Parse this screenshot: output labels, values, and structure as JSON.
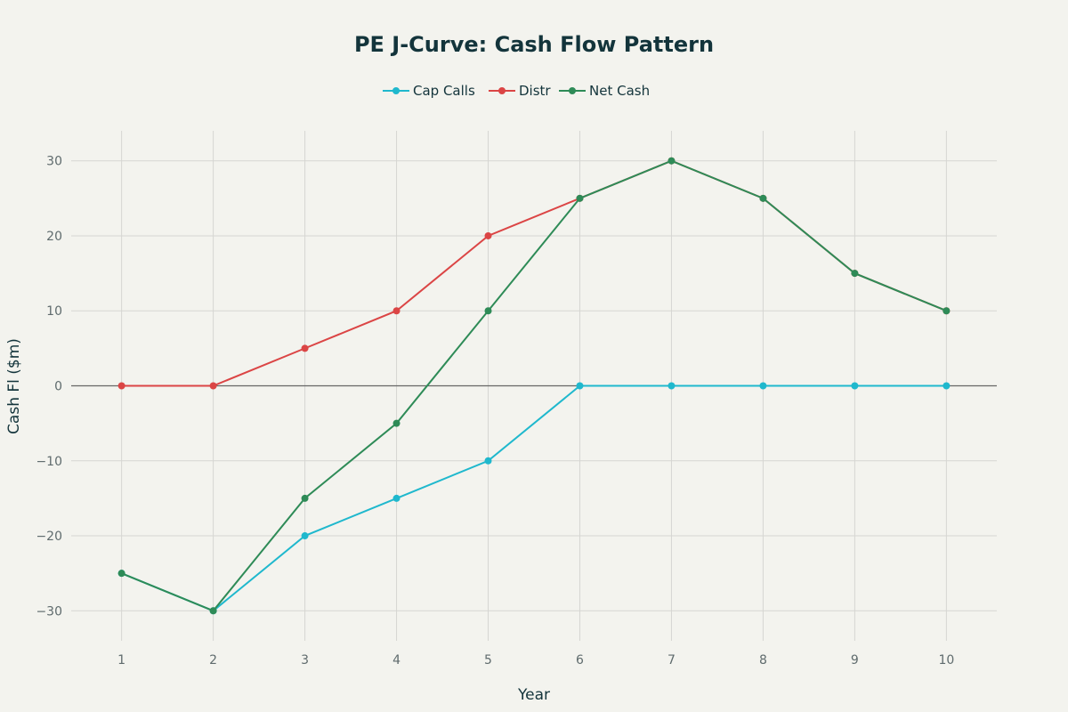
{
  "chart_data": {
    "type": "line",
    "title": "PE J-Curve: Cash Flow Pattern",
    "xlabel": "Year",
    "ylabel": "Cash Fl ($m)",
    "x": [
      1,
      2,
      3,
      4,
      5,
      6,
      7,
      8,
      9,
      10
    ],
    "xlim": [
      0.45,
      10.55
    ],
    "ylim": [
      -34,
      34
    ],
    "yticks": [
      -30,
      -20,
      -10,
      0,
      10,
      20,
      30
    ],
    "ytick_labels": [
      "−30",
      "−20",
      "−10",
      "0",
      "10",
      "20",
      "30"
    ],
    "xtick_labels": [
      "1",
      "2",
      "3",
      "4",
      "5",
      "6",
      "7",
      "8",
      "9",
      "10"
    ],
    "grid": true,
    "legend_position": "top-center",
    "series": [
      {
        "name": "Cap Calls",
        "color": "#1fb8cd",
        "values": [
          -25,
          -30,
          -20,
          -15,
          -10,
          0,
          0,
          0,
          0,
          0
        ]
      },
      {
        "name": "Distr",
        "color": "#db4545",
        "values": [
          0,
          0,
          5,
          10,
          20,
          25,
          30,
          25,
          15,
          10
        ]
      },
      {
        "name": "Net Cash",
        "color": "#2e8b57",
        "values": [
          -25,
          -30,
          -15,
          -5,
          10,
          25,
          30,
          25,
          15,
          10
        ]
      }
    ]
  }
}
